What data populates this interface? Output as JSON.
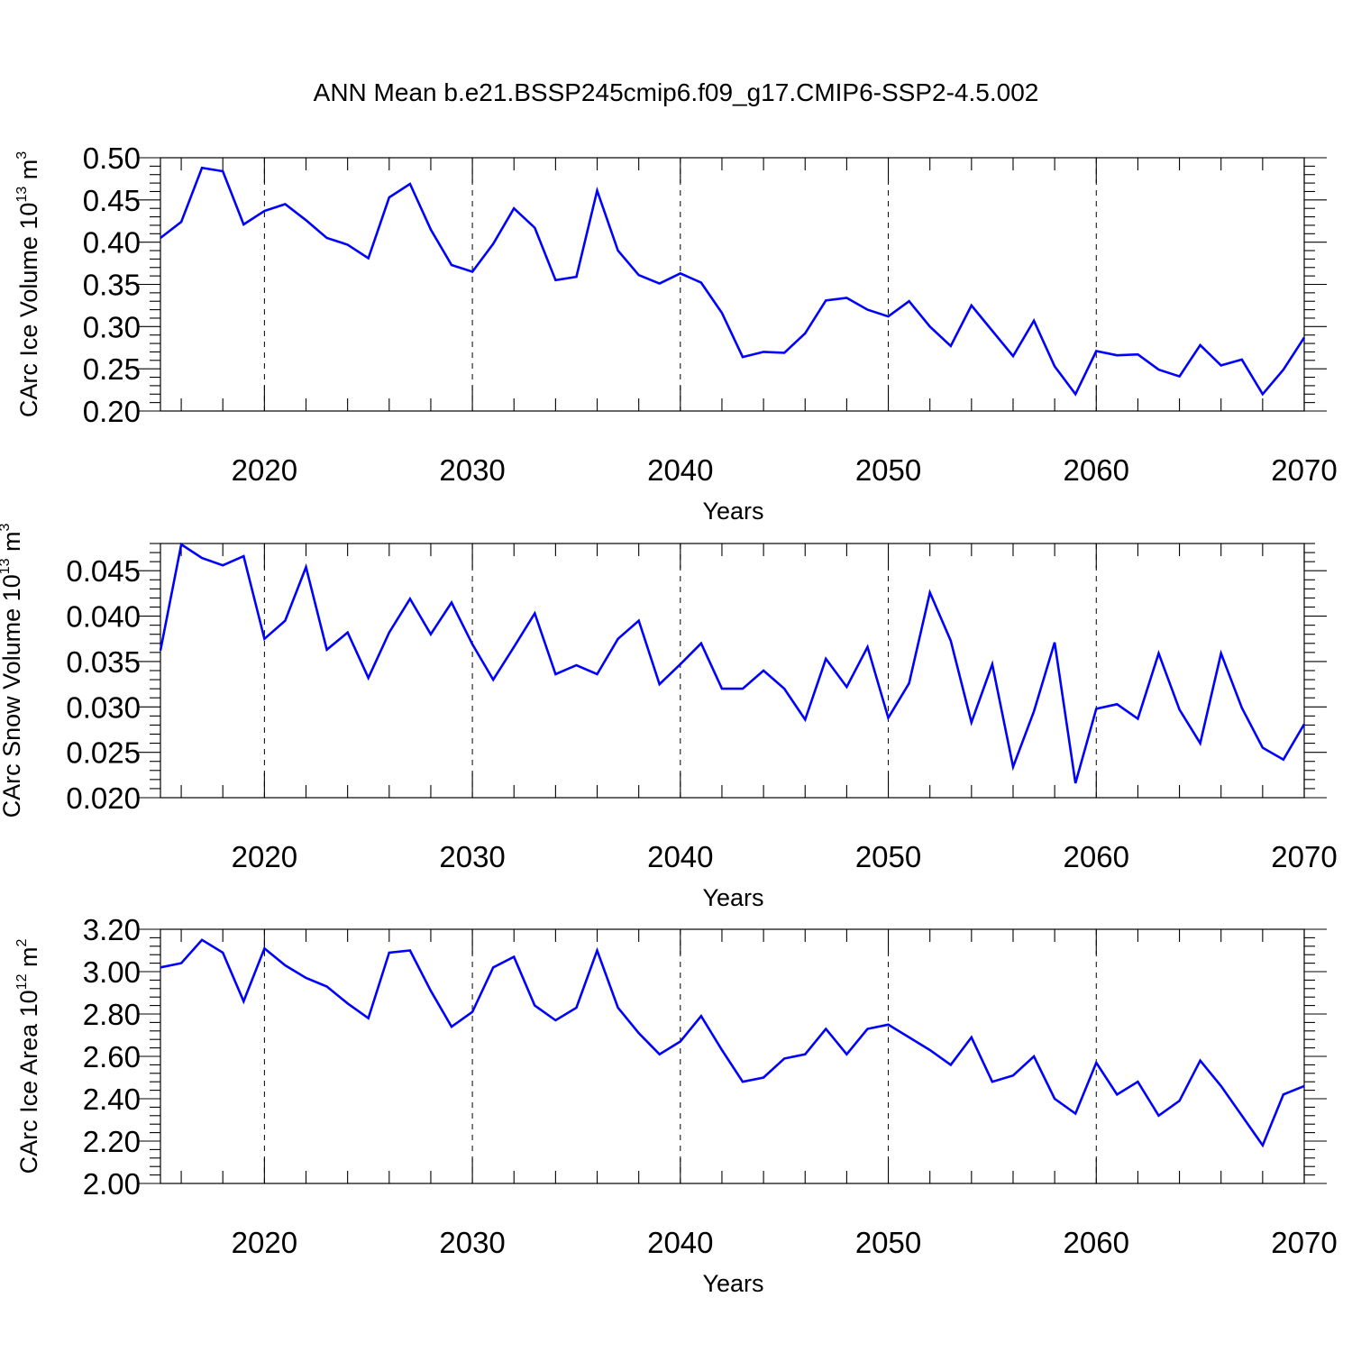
{
  "title": "ANN Mean b.e21.BSSP245cmip6.f09_g17.CMIP6-SSP2-4.5.002",
  "colors": {
    "series": "#0000ff",
    "axis": "#000000"
  },
  "chart_data": [
    {
      "type": "line",
      "ylabel": {
        "base": "CArc Ice Volume 10",
        "exp": "13",
        "unit": " m",
        "unit_exp": "3"
      },
      "xlabel": "Years",
      "xlim": [
        2015,
        2070
      ],
      "ylim": [
        0.2,
        0.5
      ],
      "xticks": [
        2020,
        2030,
        2040,
        2050,
        2060,
        2070
      ],
      "xtick_labels": [
        "2020",
        "2030",
        "2040",
        "2050",
        "2060",
        "2070"
      ],
      "yticks": [
        0.2,
        0.25,
        0.3,
        0.35,
        0.4,
        0.45,
        0.5
      ],
      "ytick_labels": [
        "0.20",
        "0.25",
        "0.30",
        "0.35",
        "0.40",
        "0.45",
        "0.50"
      ],
      "grid": "vertical dashed at major x ticks",
      "x": [
        2015,
        2016,
        2017,
        2018,
        2019,
        2020,
        2021,
        2022,
        2023,
        2024,
        2025,
        2026,
        2027,
        2028,
        2029,
        2030,
        2031,
        2032,
        2033,
        2034,
        2035,
        2036,
        2037,
        2038,
        2039,
        2040,
        2041,
        2042,
        2043,
        2044,
        2045,
        2046,
        2047,
        2048,
        2049,
        2050,
        2051,
        2052,
        2053,
        2054,
        2055,
        2056,
        2057,
        2058,
        2059,
        2060,
        2061,
        2062,
        2063,
        2064,
        2065,
        2066,
        2067,
        2068,
        2069,
        2070
      ],
      "y": [
        0.405,
        0.424,
        0.488,
        0.484,
        0.421,
        0.437,
        0.445,
        0.426,
        0.405,
        0.397,
        0.381,
        0.453,
        0.469,
        0.415,
        0.373,
        0.365,
        0.398,
        0.44,
        0.417,
        0.355,
        0.359,
        0.461,
        0.39,
        0.361,
        0.351,
        0.363,
        0.352,
        0.316,
        0.264,
        0.27,
        0.269,
        0.292,
        0.331,
        0.334,
        0.32,
        0.312,
        0.33,
        0.3,
        0.277,
        0.325,
        0.295,
        0.265,
        0.307,
        0.253,
        0.22,
        0.271,
        0.266,
        0.267,
        0.249,
        0.241,
        0.278,
        0.254,
        0.261,
        0.22,
        0.249,
        0.287
      ]
    },
    {
      "type": "line",
      "ylabel": {
        "base": "CArc Snow Volume 10",
        "exp": "13",
        "unit": " m",
        "unit_exp": "3"
      },
      "xlabel": "Years",
      "xlim": [
        2015,
        2070
      ],
      "ylim": [
        0.02,
        0.048
      ],
      "xticks": [
        2020,
        2030,
        2040,
        2050,
        2060,
        2070
      ],
      "xtick_labels": [
        "2020",
        "2030",
        "2040",
        "2050",
        "2060",
        "2070"
      ],
      "yticks": [
        0.02,
        0.025,
        0.03,
        0.035,
        0.04,
        0.045
      ],
      "ytick_labels": [
        "0.020",
        "0.025",
        "0.030",
        "0.035",
        "0.040",
        "0.045"
      ],
      "grid": "vertical dashed at major x ticks",
      "x": [
        2015,
        2016,
        2017,
        2018,
        2019,
        2020,
        2021,
        2022,
        2023,
        2024,
        2025,
        2026,
        2027,
        2028,
        2029,
        2030,
        2031,
        2032,
        2033,
        2034,
        2035,
        2036,
        2037,
        2038,
        2039,
        2040,
        2041,
        2042,
        2043,
        2044,
        2045,
        2046,
        2047,
        2048,
        2049,
        2050,
        2051,
        2052,
        2053,
        2054,
        2055,
        2056,
        2057,
        2058,
        2059,
        2060,
        2061,
        2062,
        2063,
        2064,
        2065,
        2066,
        2067,
        2068,
        2069,
        2070
      ],
      "y": [
        0.0362,
        0.0479,
        0.0464,
        0.0456,
        0.0466,
        0.0375,
        0.0395,
        0.0454,
        0.0363,
        0.0382,
        0.0332,
        0.0382,
        0.0419,
        0.038,
        0.0415,
        0.0369,
        0.033,
        0.0366,
        0.0403,
        0.0336,
        0.0346,
        0.0336,
        0.0375,
        0.0395,
        0.0325,
        0.0347,
        0.037,
        0.032,
        0.032,
        0.034,
        0.032,
        0.0286,
        0.0353,
        0.0322,
        0.0366,
        0.0288,
        0.0326,
        0.0426,
        0.0373,
        0.0283,
        0.0347,
        0.0234,
        0.0295,
        0.0371,
        0.0216,
        0.0298,
        0.0303,
        0.0287,
        0.0359,
        0.0297,
        0.026,
        0.0359,
        0.0299,
        0.0255,
        0.0242,
        0.0281
      ]
    },
    {
      "type": "line",
      "ylabel": {
        "base": "CArc Ice Area 10",
        "exp": "12",
        "unit": " m",
        "unit_exp": "2"
      },
      "xlabel": "Years",
      "xlim": [
        2015,
        2070
      ],
      "ylim": [
        2.0,
        3.2
      ],
      "xticks": [
        2020,
        2030,
        2040,
        2050,
        2060,
        2070
      ],
      "xtick_labels": [
        "2020",
        "2030",
        "2040",
        "2050",
        "2060",
        "2070"
      ],
      "yticks": [
        2.0,
        2.2,
        2.4,
        2.6,
        2.8,
        3.0,
        3.2
      ],
      "ytick_labels": [
        "2.00",
        "2.20",
        "2.40",
        "2.60",
        "2.80",
        "3.00",
        "3.20"
      ],
      "grid": "vertical dashed at major x ticks",
      "x": [
        2015,
        2016,
        2017,
        2018,
        2019,
        2020,
        2021,
        2022,
        2023,
        2024,
        2025,
        2026,
        2027,
        2028,
        2029,
        2030,
        2031,
        2032,
        2033,
        2034,
        2035,
        2036,
        2037,
        2038,
        2039,
        2040,
        2041,
        2042,
        2043,
        2044,
        2045,
        2046,
        2047,
        2048,
        2049,
        2050,
        2051,
        2052,
        2053,
        2054,
        2055,
        2056,
        2057,
        2058,
        2059,
        2060,
        2061,
        2062,
        2063,
        2064,
        2065,
        2066,
        2067,
        2068,
        2069,
        2070
      ],
      "y": [
        3.02,
        3.04,
        3.15,
        3.09,
        2.86,
        3.11,
        3.03,
        2.97,
        2.93,
        2.85,
        2.78,
        3.09,
        3.1,
        2.91,
        2.74,
        2.81,
        3.02,
        3.07,
        2.84,
        2.77,
        2.83,
        3.1,
        2.83,
        2.71,
        2.61,
        2.67,
        2.79,
        2.63,
        2.48,
        2.5,
        2.59,
        2.61,
        2.73,
        2.61,
        2.73,
        2.75,
        2.69,
        2.63,
        2.56,
        2.69,
        2.48,
        2.51,
        2.6,
        2.4,
        2.33,
        2.57,
        2.42,
        2.48,
        2.32,
        2.39,
        2.58,
        2.46,
        2.32,
        2.18,
        2.42,
        2.46
      ]
    }
  ]
}
